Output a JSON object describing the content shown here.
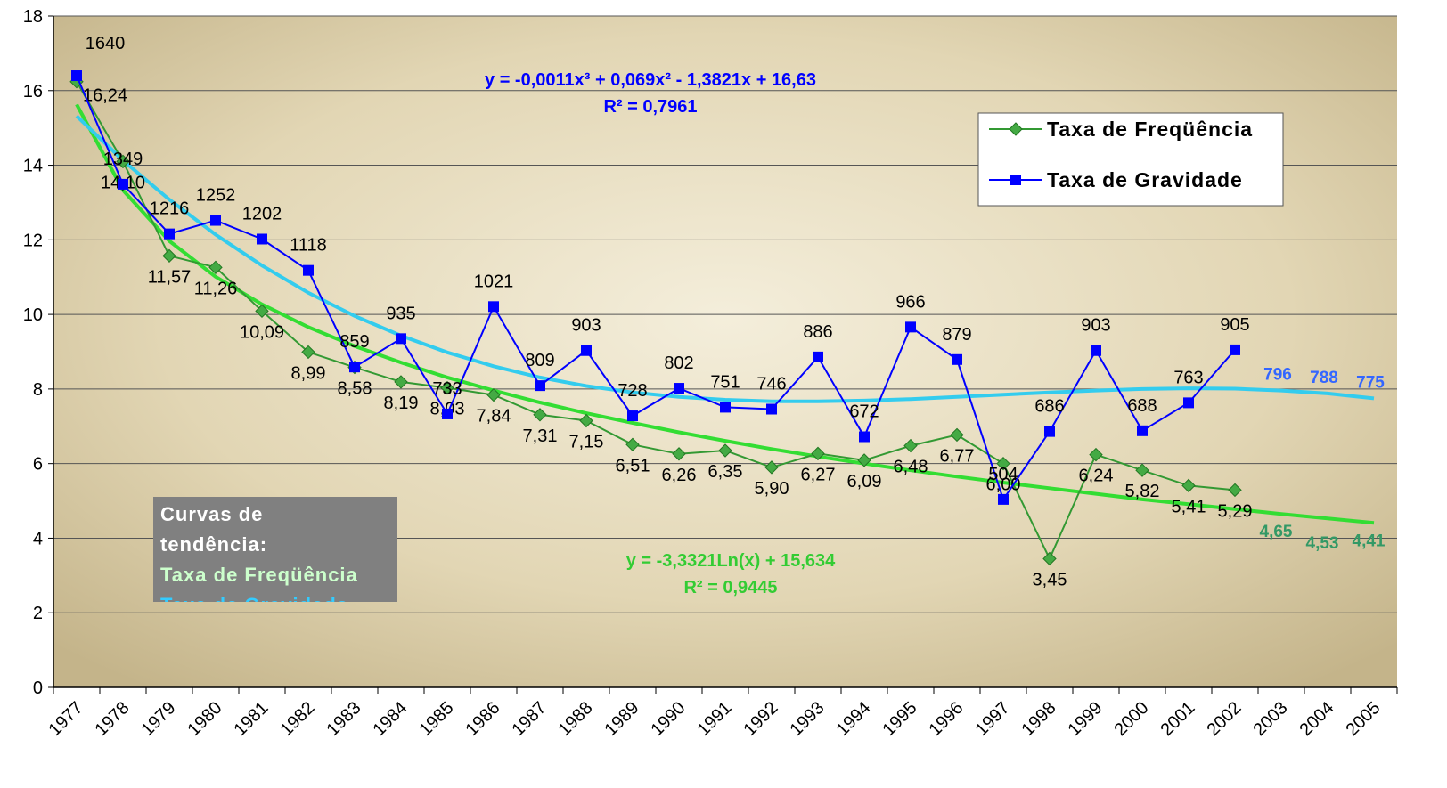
{
  "chart_data": {
    "type": "line",
    "categories": [
      "1977",
      "1978",
      "1979",
      "1980",
      "1981",
      "1982",
      "1983",
      "1984",
      "1985",
      "1986",
      "1987",
      "1988",
      "1989",
      "1990",
      "1991",
      "1992",
      "1993",
      "1994",
      "1995",
      "1996",
      "1997",
      "1998",
      "1999",
      "2000",
      "2001",
      "2002",
      "2003",
      "2004",
      "2005"
    ],
    "ylim": [
      0,
      18
    ],
    "yticks": [
      0,
      2,
      4,
      6,
      8,
      10,
      12,
      14,
      16,
      18
    ],
    "grid": true,
    "legend": "upper right",
    "series": [
      {
        "name": "Taxa de Freqüência",
        "color": "#339933",
        "marker": "diamond",
        "values": [
          16.24,
          14.1,
          11.57,
          11.26,
          10.09,
          8.99,
          8.58,
          8.19,
          8.03,
          7.84,
          7.31,
          7.15,
          6.51,
          6.26,
          6.35,
          5.9,
          6.27,
          6.09,
          6.48,
          6.77,
          6.0,
          3.45,
          6.24,
          5.82,
          5.41,
          5.29,
          null,
          null,
          null
        ],
        "value_labels": [
          "16,24",
          "14,10",
          "11,57",
          "11,26",
          "10,09",
          "8,99",
          "8,58",
          "8,19",
          "8,03",
          "7,84",
          "7,31",
          "7,15",
          "6,51",
          "6,26",
          "6,35",
          "5,90",
          "6,27",
          "6,09",
          "6,48",
          "6,77",
          "6,00",
          "3,45",
          "6,24",
          "5,82",
          "5,41",
          "5,29",
          null,
          null,
          null
        ]
      },
      {
        "name": "Taxa de Gravidade",
        "color": "#0000ff",
        "marker": "square",
        "values": [
          16.4,
          13.49,
          12.16,
          12.52,
          12.02,
          11.18,
          8.59,
          9.35,
          7.33,
          10.21,
          8.09,
          9.03,
          7.28,
          8.02,
          7.51,
          7.46,
          8.86,
          6.72,
          9.66,
          8.79,
          5.04,
          6.86,
          9.03,
          6.88,
          7.63,
          9.05,
          null,
          null,
          null
        ],
        "value_labels": [
          "1640",
          "1349",
          "1216",
          "1252",
          "1202",
          "1118",
          "859",
          "935",
          "733",
          "1021",
          "809",
          "903",
          "728",
          "802",
          "751",
          "746",
          "886",
          "672",
          "966",
          "879",
          "504",
          "686",
          "903",
          "688",
          "763",
          "905",
          null,
          null,
          null
        ]
      }
    ],
    "trendlines": [
      {
        "equation": "y = -3,3321Ln(x) + 15,634",
        "r2": "R² = 0,9445",
        "color": "#33dd33",
        "text_color": "#33cc33",
        "label_color": "#339966",
        "values": [
          15.63,
          13.33,
          11.97,
          11.01,
          10.27,
          9.66,
          9.15,
          8.71,
          8.31,
          7.96,
          7.64,
          7.35,
          7.09,
          6.84,
          6.61,
          6.39,
          6.19,
          6.0,
          5.82,
          5.65,
          5.49,
          5.34,
          5.19,
          5.04,
          4.91,
          4.78,
          4.65,
          4.53,
          4.41
        ],
        "value_labels": [
          null,
          null,
          null,
          null,
          null,
          null,
          null,
          null,
          null,
          null,
          null,
          null,
          null,
          null,
          null,
          null,
          null,
          null,
          null,
          null,
          null,
          null,
          null,
          null,
          null,
          null,
          "4,65",
          "4,53",
          "4,41"
        ]
      },
      {
        "equation": "y = -0,0011x³ + 0,069x² - 1,3821x + 16,63",
        "r2": "R² = 0,7961",
        "color": "#33ccee",
        "text_color": "#0000ff",
        "label_color": "#3366ff",
        "values": [
          15.32,
          14.13,
          13.08,
          12.14,
          11.31,
          10.58,
          9.96,
          9.43,
          8.98,
          8.61,
          8.31,
          8.08,
          7.91,
          7.79,
          7.71,
          7.67,
          7.67,
          7.69,
          7.73,
          7.79,
          7.85,
          7.91,
          7.96,
          8.0,
          8.02,
          8.01,
          7.96,
          7.88,
          7.75
        ],
        "value_labels": [
          null,
          null,
          null,
          null,
          null,
          null,
          null,
          null,
          null,
          null,
          null,
          null,
          null,
          null,
          null,
          null,
          null,
          null,
          null,
          null,
          null,
          null,
          null,
          null,
          null,
          null,
          "796",
          "788",
          "775"
        ]
      }
    ],
    "annotation": {
      "lines": [
        "Curvas de",
        "tendência:",
        "Taxa de Freqüência",
        "Taxa de Gravidade"
      ],
      "colors": [
        "#ffffff",
        "#ffffff",
        "#ccffcc",
        "#33ccff"
      ]
    }
  }
}
